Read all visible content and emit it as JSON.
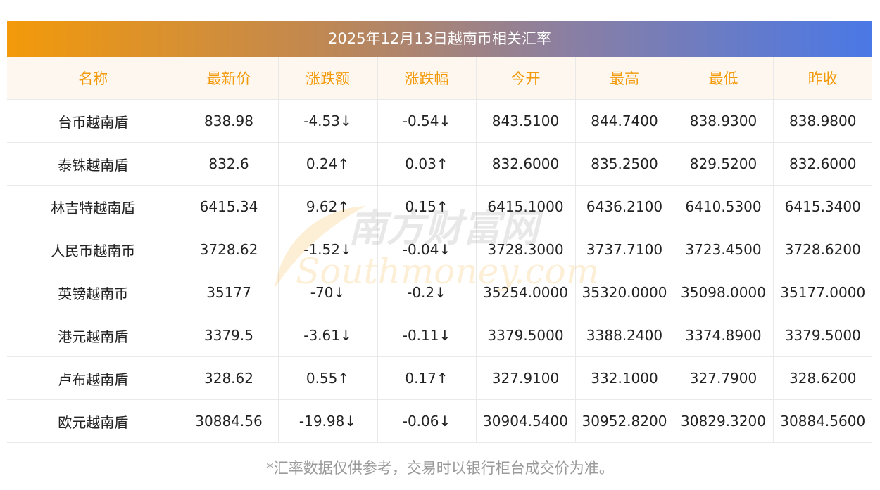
{
  "title": "2025年12月13日越南币相关汇率",
  "columns": [
    "名称",
    "最新价",
    "涨跌额",
    "涨跌幅",
    "今开",
    "最高",
    "最低",
    "昨收"
  ],
  "rows": [
    {
      "name": "台币越南盾",
      "latest": "838.98",
      "change": "-4.53↓",
      "change_pct": "-0.54↓",
      "open": "843.5100",
      "high": "844.7400",
      "low": "838.9300",
      "prev_close": "838.9800",
      "direction": "down"
    },
    {
      "name": "泰铢越南盾",
      "latest": "832.6",
      "change": "0.24↑",
      "change_pct": "0.03↑",
      "open": "832.6000",
      "high": "835.2500",
      "low": "829.5200",
      "prev_close": "832.6000",
      "direction": "up"
    },
    {
      "name": "林吉特越南盾",
      "latest": "6415.34",
      "change": "9.62↑",
      "change_pct": "0.15↑",
      "open": "6415.1000",
      "high": "6436.2100",
      "low": "6410.5300",
      "prev_close": "6415.3400",
      "direction": "up"
    },
    {
      "name": "人民币越南币",
      "latest": "3728.62",
      "change": "-1.52↓",
      "change_pct": "-0.04↓",
      "open": "3728.3000",
      "high": "3737.7100",
      "low": "3723.4500",
      "prev_close": "3728.6200",
      "direction": "down"
    },
    {
      "name": "英镑越南币",
      "latest": "35177",
      "change": "-70↓",
      "change_pct": "-0.2↓",
      "open": "35254.0000",
      "high": "35320.0000",
      "low": "35098.0000",
      "prev_close": "35177.0000",
      "direction": "down"
    },
    {
      "name": "港元越南盾",
      "latest": "3379.5",
      "change": "-3.61↓",
      "change_pct": "-0.11↓",
      "open": "3379.5000",
      "high": "3388.2400",
      "low": "3374.8900",
      "prev_close": "3379.5000",
      "direction": "down"
    },
    {
      "name": "卢布越南盾",
      "latest": "328.62",
      "change": "0.55↑",
      "change_pct": "0.17↑",
      "open": "327.9100",
      "high": "332.1000",
      "low": "327.7900",
      "prev_close": "328.6200",
      "direction": "up"
    },
    {
      "name": "欧元越南盾",
      "latest": "30884.56",
      "change": "-19.98↓",
      "change_pct": "-0.06↓",
      "open": "30904.5400",
      "high": "30952.8200",
      "low": "30829.3200",
      "prev_close": "30884.5600",
      "direction": "down"
    }
  ],
  "watermark": {
    "cn": "南方财富网",
    "en": "Southmoney.com"
  },
  "footnote": "*汇率数据仅供参考，交易时以银行柜台成交价为准。",
  "colors": {
    "header_text": "#f39a0a",
    "up": "#e8191c",
    "down": "#168816",
    "gradient_start": "#f39a0a",
    "gradient_end": "#4a78e6"
  }
}
